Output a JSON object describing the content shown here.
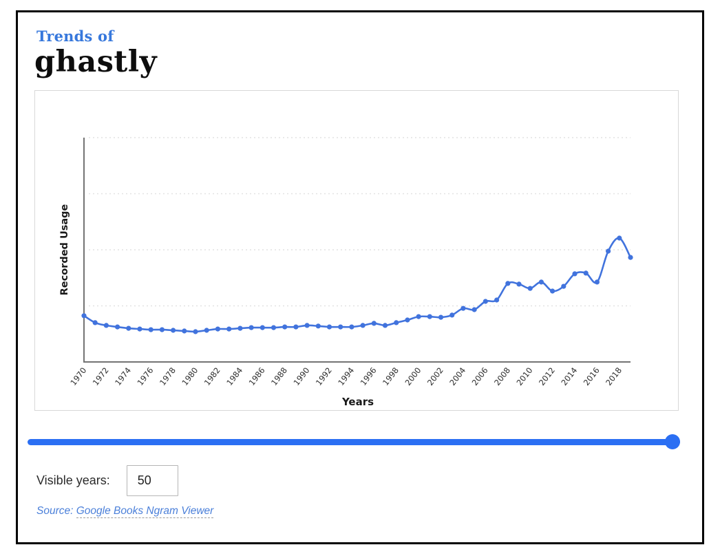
{
  "header": {
    "eyebrow": "Trends of",
    "word": "ghastly"
  },
  "chart_data": {
    "type": "line",
    "title": "",
    "xlabel": "Years",
    "ylabel": "Recorded Usage",
    "x": [
      1970,
      1971,
      1972,
      1973,
      1974,
      1975,
      1976,
      1977,
      1978,
      1979,
      1980,
      1981,
      1982,
      1983,
      1984,
      1985,
      1986,
      1987,
      1988,
      1989,
      1990,
      1991,
      1992,
      1993,
      1994,
      1995,
      1996,
      1997,
      1998,
      1999,
      2000,
      2001,
      2002,
      2003,
      2004,
      2005,
      2006,
      2007,
      2008,
      2009,
      2010,
      2011,
      2012,
      2013,
      2014,
      2015,
      2016,
      2017,
      2018,
      2019
    ],
    "series": [
      {
        "name": "ghastly",
        "values": [
          20.6,
          17.5,
          16.3,
          15.6,
          15.0,
          14.7,
          14.4,
          14.4,
          14.1,
          13.8,
          13.5,
          14.1,
          14.7,
          14.7,
          15.0,
          15.3,
          15.3,
          15.3,
          15.6,
          15.6,
          16.3,
          16.0,
          15.6,
          15.6,
          15.6,
          16.3,
          17.2,
          16.3,
          17.5,
          18.7,
          20.2,
          20.2,
          19.9,
          20.9,
          23.9,
          23.3,
          27.0,
          27.6,
          35.0,
          34.7,
          32.8,
          35.6,
          31.6,
          33.7,
          39.3,
          39.6,
          35.6,
          49.4,
          55.2,
          46.6
        ]
      }
    ],
    "x_tick_labels": [
      "1970",
      "1972",
      "1974",
      "1976",
      "1978",
      "1980",
      "1982",
      "1984",
      "1986",
      "1988",
      "1990",
      "1992",
      "1994",
      "1996",
      "1998",
      "2000",
      "2002",
      "2004",
      "2006",
      "2008",
      "2010",
      "2012",
      "2014",
      "2016",
      "2018"
    ],
    "ylim": [
      0,
      100
    ],
    "y_gridlines": [
      25,
      50,
      75,
      100
    ],
    "grid_style": "dashed-horizontal",
    "y_tick_labels": [],
    "legend_position": "none",
    "line_color": "#4173dd",
    "marker": "circle",
    "smoothed": true
  },
  "controls": {
    "slider": {
      "accent_color": "#2b6ff3",
      "thumb_position": "right-end"
    },
    "visible_years": {
      "label": "Visible years:",
      "value": "50"
    }
  },
  "source": {
    "prefix": "Source:",
    "link_text": "Google Books Ngram Viewer"
  },
  "colors": {
    "eyebrow_blue": "#3778dc",
    "word_black": "#0d0d0d",
    "source_blue": "#4a7fd9"
  }
}
